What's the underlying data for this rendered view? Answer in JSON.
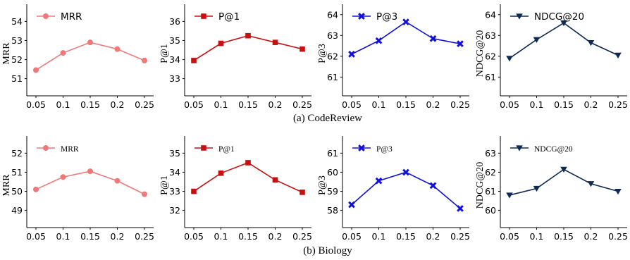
{
  "x_ticks": [
    "0.05",
    "0.1",
    "0.15",
    "0.2",
    "0.25"
  ],
  "chart_data": [
    {
      "type": "line",
      "row": 0,
      "panel": 0,
      "x": [
        0.05,
        0.1,
        0.15,
        0.2,
        0.25
      ],
      "xlim": [
        0.05,
        0.25
      ],
      "ylabel": "MRR",
      "yticks": [
        51,
        52,
        53,
        54
      ],
      "ylim": [
        50.1,
        54.9
      ],
      "series": [
        {
          "name": "MRR",
          "values": [
            51.45,
            52.35,
            52.9,
            52.55,
            51.95
          ],
          "color": "#f07878",
          "marker": "circle"
        }
      ],
      "legend": "top-left"
    },
    {
      "type": "line",
      "row": 0,
      "panel": 1,
      "x": [
        0.05,
        0.1,
        0.15,
        0.2,
        0.25
      ],
      "xlim": [
        0.05,
        0.25
      ],
      "ylabel": "P@1",
      "yticks": [
        33,
        34,
        35,
        36
      ],
      "ylim": [
        32.1,
        36.9
      ],
      "series": [
        {
          "name": "P@1",
          "values": [
            33.95,
            34.85,
            35.25,
            34.9,
            34.55
          ],
          "color": "#c81010",
          "marker": "square"
        }
      ],
      "legend": "top-left"
    },
    {
      "type": "line",
      "row": 0,
      "panel": 2,
      "x": [
        0.05,
        0.1,
        0.15,
        0.2,
        0.25
      ],
      "xlim": [
        0.05,
        0.25
      ],
      "ylabel": "P@3",
      "yticks": [
        61,
        62,
        63,
        64
      ],
      "ylim": [
        60.1,
        64.5
      ],
      "series": [
        {
          "name": "P@3",
          "values": [
            62.1,
            62.75,
            63.65,
            62.85,
            62.6
          ],
          "color": "#1010e0",
          "marker": "x"
        }
      ],
      "legend": "top-left"
    },
    {
      "type": "line",
      "row": 0,
      "panel": 3,
      "x": [
        0.05,
        0.1,
        0.15,
        0.2,
        0.25
      ],
      "xlim": [
        0.05,
        0.25
      ],
      "ylabel": "NDCG@20",
      "yticks": [
        61,
        62,
        63,
        64
      ],
      "ylim": [
        60.1,
        64.5
      ],
      "series": [
        {
          "name": "NDCG@20",
          "values": [
            61.9,
            62.8,
            63.6,
            62.65,
            62.05
          ],
          "color": "#0d2a55",
          "marker": "triangle-down"
        }
      ],
      "legend": "top-left"
    },
    {
      "type": "line",
      "row": 1,
      "panel": 0,
      "x": [
        0.05,
        0.1,
        0.15,
        0.2,
        0.25
      ],
      "xlim": [
        0.05,
        0.25
      ],
      "ylabel": "MRR",
      "yticks": [
        49,
        50,
        51,
        52
      ],
      "ylim": [
        48.1,
        52.9
      ],
      "series": [
        {
          "name": "MRR",
          "values": [
            50.1,
            50.75,
            51.05,
            50.55,
            49.85
          ],
          "color": "#f07878",
          "marker": "circle"
        }
      ],
      "legend": "top-left"
    },
    {
      "type": "line",
      "row": 1,
      "panel": 1,
      "x": [
        0.05,
        0.1,
        0.15,
        0.2,
        0.25
      ],
      "xlim": [
        0.05,
        0.25
      ],
      "ylabel": "P@1",
      "yticks": [
        32,
        33,
        34,
        35
      ],
      "ylim": [
        31.1,
        35.9
      ],
      "series": [
        {
          "name": "P@1",
          "values": [
            33.0,
            33.95,
            34.5,
            33.6,
            32.95
          ],
          "color": "#c81010",
          "marker": "square"
        }
      ],
      "legend": "top-left"
    },
    {
      "type": "line",
      "row": 1,
      "panel": 2,
      "x": [
        0.05,
        0.1,
        0.15,
        0.2,
        0.25
      ],
      "xlim": [
        0.05,
        0.25
      ],
      "ylabel": "P@3",
      "yticks": [
        58,
        59,
        60,
        61
      ],
      "ylim": [
        57.1,
        61.9
      ],
      "series": [
        {
          "name": "P@3",
          "values": [
            58.3,
            59.55,
            60.0,
            59.3,
            58.1
          ],
          "color": "#1010e0",
          "marker": "x"
        }
      ],
      "legend": "top-left"
    },
    {
      "type": "line",
      "row": 1,
      "panel": 3,
      "x": [
        0.05,
        0.1,
        0.15,
        0.2,
        0.25
      ],
      "xlim": [
        0.05,
        0.25
      ],
      "ylabel": "NDCG@20",
      "yticks": [
        60,
        61,
        62,
        63
      ],
      "ylim": [
        59.1,
        63.9
      ],
      "series": [
        {
          "name": "NDCG@20",
          "values": [
            60.8,
            61.15,
            62.15,
            61.4,
            61.0
          ],
          "color": "#0d2a55",
          "marker": "triangle-down"
        }
      ],
      "legend": "top-left"
    }
  ],
  "captions": [
    "(a) CodeReview",
    "(b) Biology"
  ]
}
